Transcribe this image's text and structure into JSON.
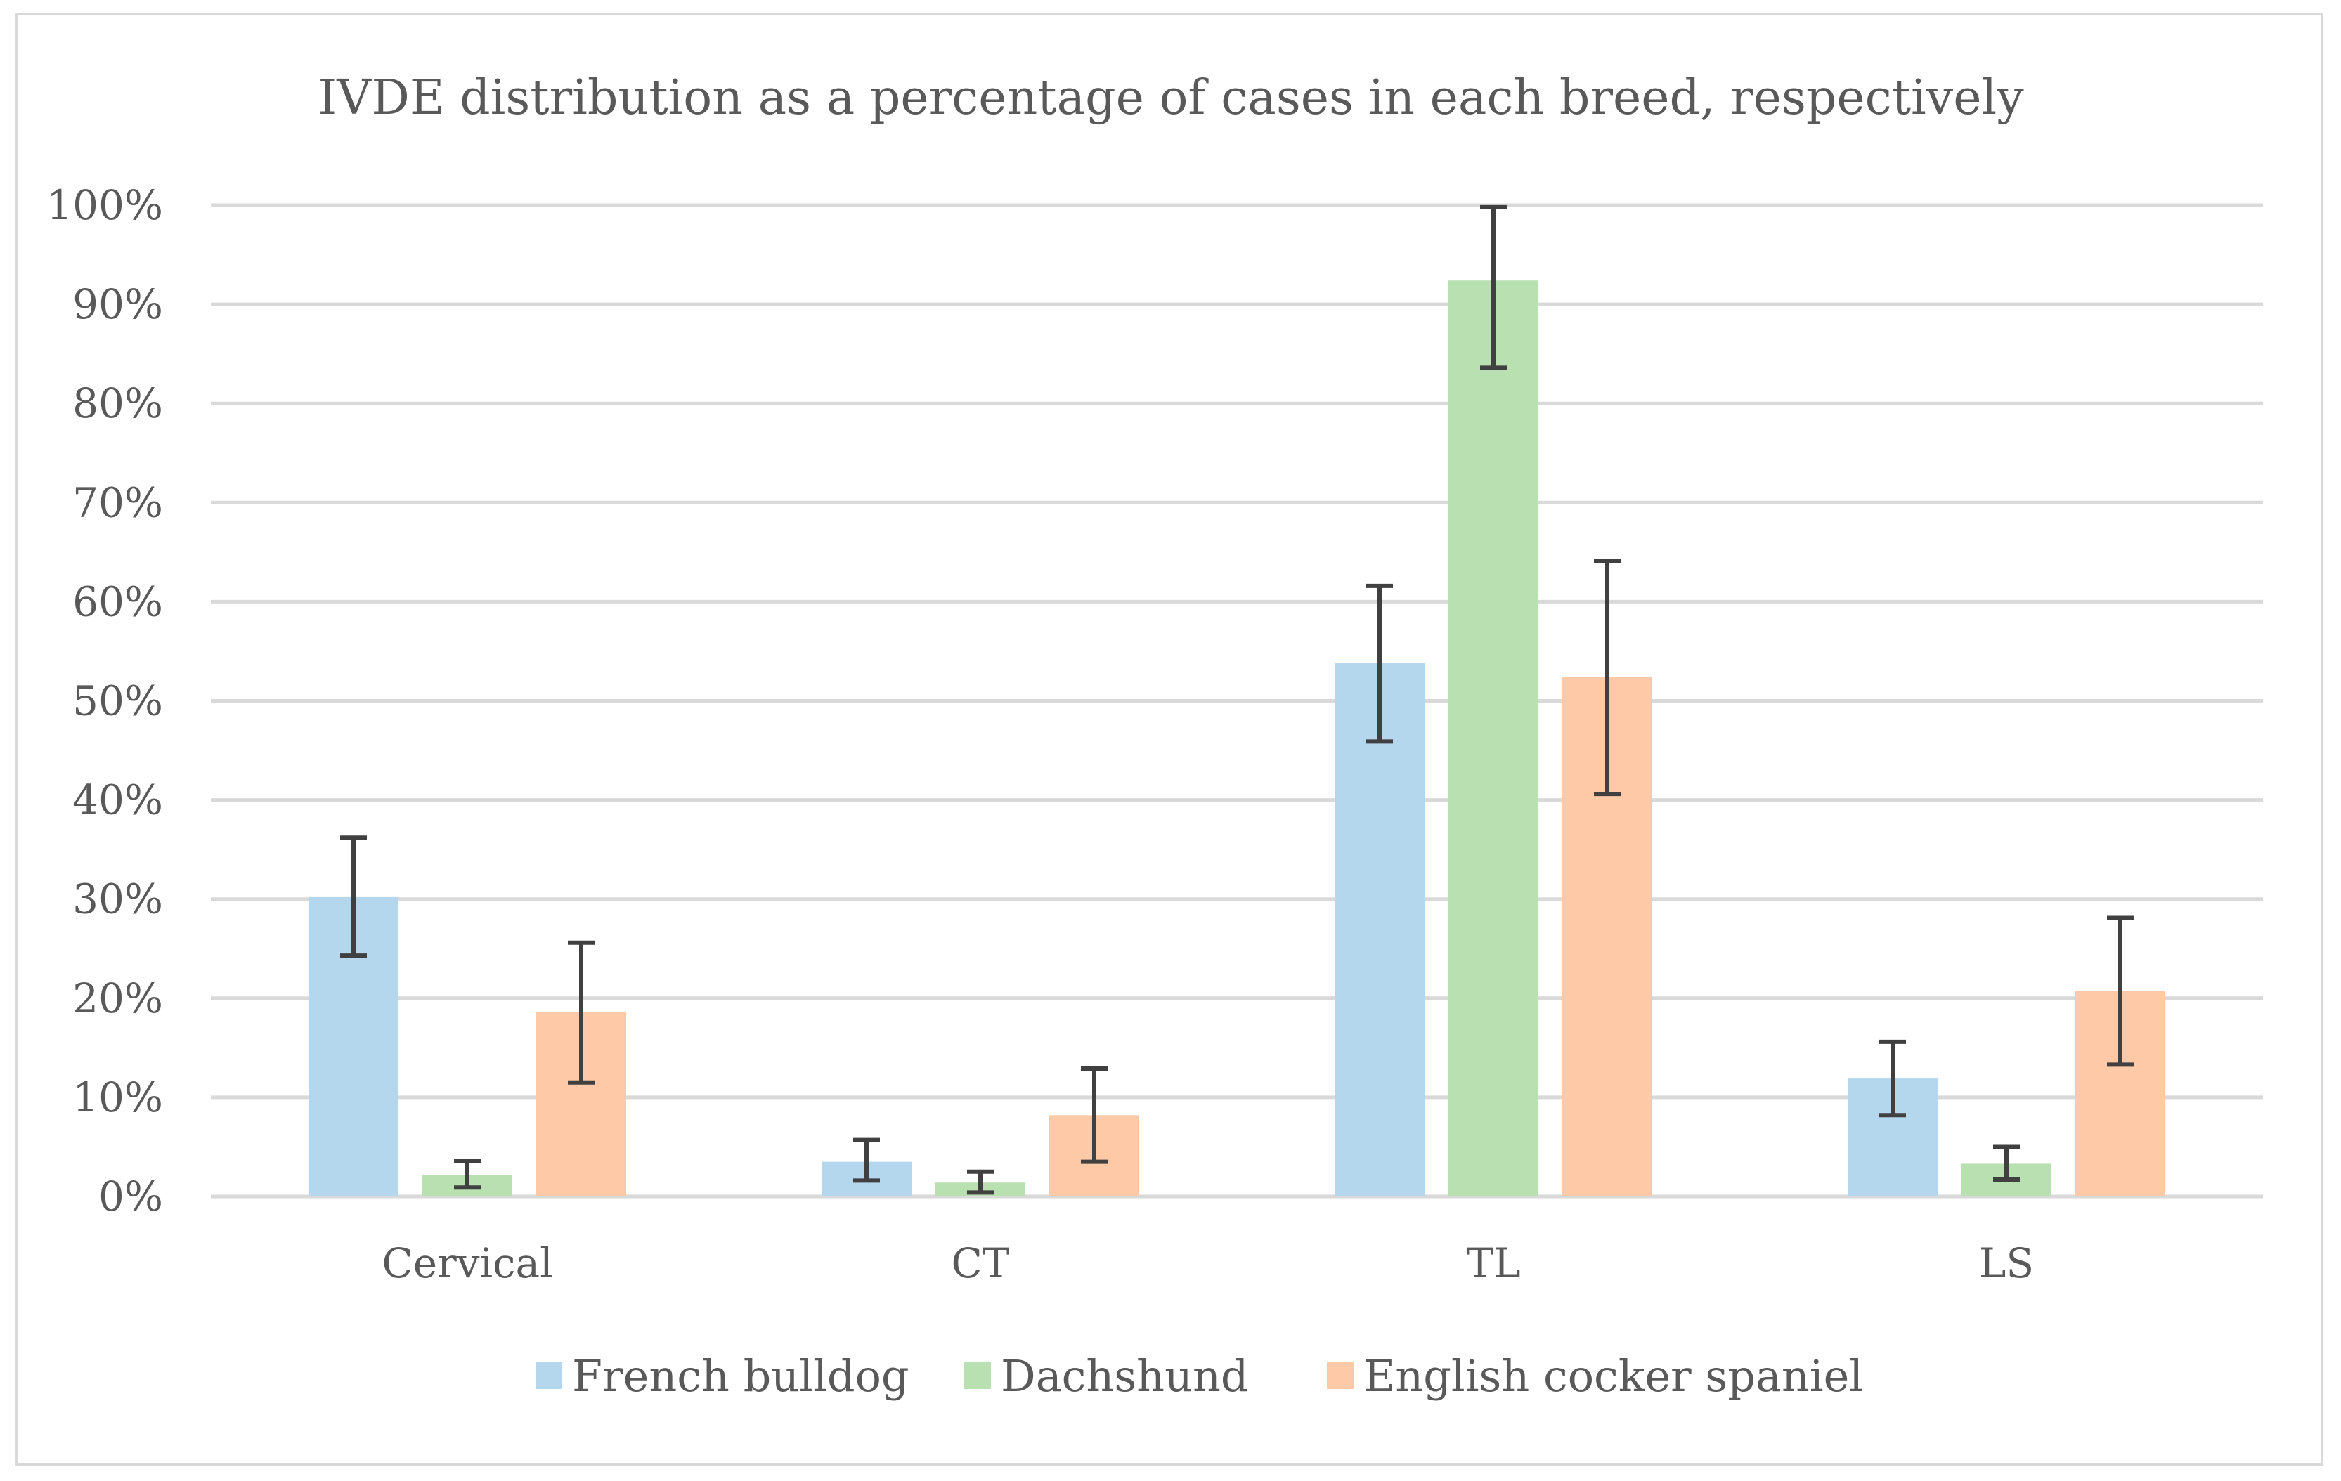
{
  "chart_data": {
    "type": "bar",
    "title": "IVDE distribution as a percentage of cases in each breed, respectively",
    "xlabel": "",
    "ylabel": "",
    "categories": [
      "Cervical",
      "CT",
      "TL",
      "LS"
    ],
    "y_ticks": [
      "0%",
      "10%",
      "20%",
      "30%",
      "40%",
      "50%",
      "60%",
      "70%",
      "80%",
      "90%",
      "100%"
    ],
    "ylim": [
      0,
      100
    ],
    "grid": true,
    "legend_position": "bottom",
    "series": [
      {
        "name": "French bulldog",
        "color": "#b4d7ee",
        "values": [
          30.2,
          3.5,
          53.8,
          11.9
        ],
        "error_low": [
          24.3,
          1.6,
          45.9,
          8.2
        ],
        "error_high": [
          36.2,
          5.7,
          61.6,
          15.6
        ]
      },
      {
        "name": "Dachshund",
        "color": "#b9e0b1",
        "values": [
          2.2,
          1.4,
          92.4,
          3.3
        ],
        "error_low": [
          0.9,
          0.4,
          83.6,
          1.7
        ],
        "error_high": [
          3.6,
          2.5,
          99.8,
          5.0
        ]
      },
      {
        "name": "English cocker spaniel",
        "color": "#fdc9a6",
        "values": [
          18.6,
          8.2,
          52.4,
          20.7
        ],
        "error_low": [
          11.5,
          3.5,
          40.6,
          13.3
        ],
        "error_high": [
          25.6,
          12.9,
          64.1,
          28.1
        ]
      }
    ],
    "error_bar_color": "#404040",
    "gridline_color": "#d9d9d9",
    "text_color": "#595959"
  }
}
